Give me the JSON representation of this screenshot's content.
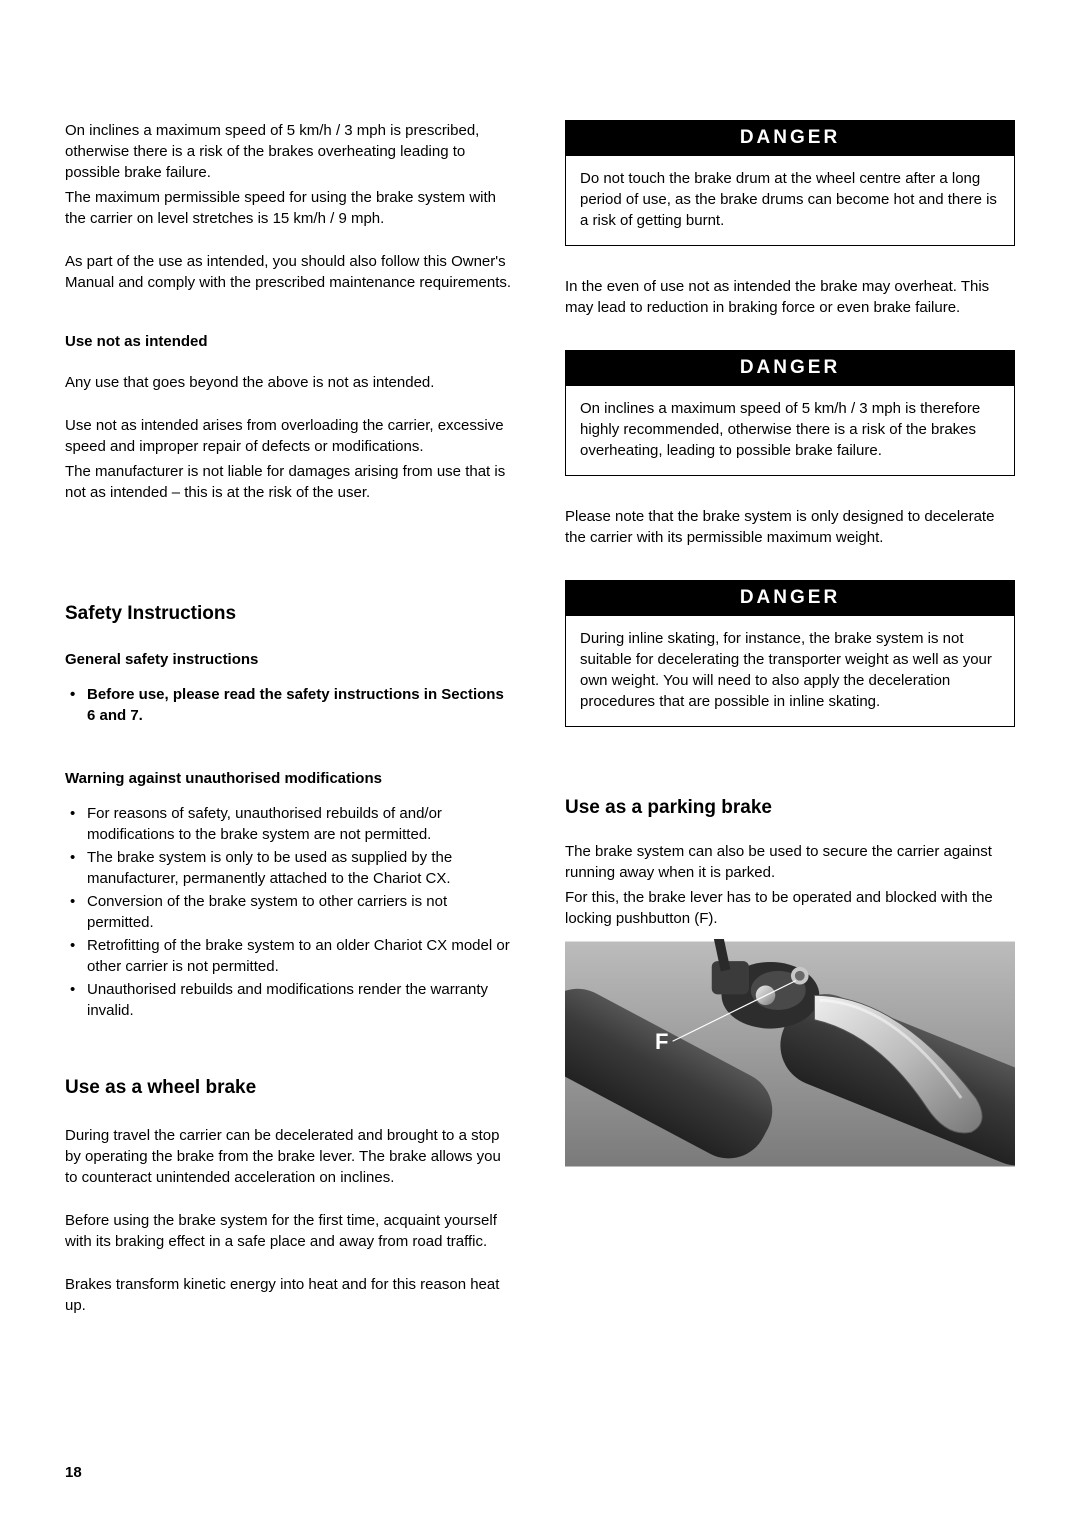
{
  "pageNumber": "18",
  "dangerLabel": "DANGER",
  "left": {
    "intro": {
      "p1": "On inclines a maximum speed of 5 km/h / 3 mph is prescribed, otherwise there is a risk of the brakes overheating leading to possible brake failure.",
      "p2": "The maximum permissible speed for using the brake system with the carrier on level stretches is 15 km/h / 9 mph.",
      "p3": "As part of the use as intended, you should also follow this Owner's Manual and comply with the prescribed maintenance requirements."
    },
    "useNotIntended": {
      "heading": "Use not as intended",
      "p1": "Any use that goes beyond the above is not as intended.",
      "p2": "Use not as intended arises from overloading the carrier, excessive speed and improper repair of defects or modifications.",
      "p3": "The manufacturer is not liable for damages arising from use that is not as intended – this is at the risk of the user."
    },
    "safety": {
      "heading": "Safety Instructions",
      "generalHeading": "General safety instructions",
      "generalBullets": [
        "Before use, please read the safety instructions in Sections 6 and 7."
      ],
      "warningHeading": "Warning against unauthorised modifications",
      "warningBullets": [
        "For reasons of safety, unauthorised rebuilds of and/or modifications to the brake system are not permitted.",
        "The brake system is only to be used as supplied by the manufacturer, permanently attached to the Chariot CX.",
        "Conversion of the brake system to other carriers is not permitted.",
        "Retrofitting of the brake system to an older Chariot CX model or other carrier is not permitted.",
        "Unauthorised rebuilds and modifications render the warranty invalid."
      ]
    },
    "wheelBrake": {
      "heading": "Use as a wheel brake",
      "p1": "During travel the carrier can be decelerated and brought to a stop by operating the brake from the brake lever. The brake allows you to counteract unintended acceleration on inclines.",
      "p2": "Before using the brake system for the first time, acquaint yourself with its braking effect in a safe place and away from road traffic.",
      "p3": "Brakes transform kinetic energy into heat and for this reason heat up."
    }
  },
  "right": {
    "danger1": "Do not touch the brake drum at the wheel centre after a long period of use, as the brake drums can become hot and there is a risk of getting burnt.",
    "inter1": "In the even of use not as intended the brake may overheat. This may lead to reduction in braking force or even brake failure.",
    "danger2": "On inclines a maximum speed of 5 km/h / 3 mph is therefore highly recommended, otherwise there is a risk of the brakes overheating, leading to possible brake failure.",
    "inter2": "Please note that the brake system is only designed to decelerate the carrier with its permissible maximum weight.",
    "danger3": "During inline skating, for instance, the brake system is not suitable for decelerating the transporter weight as well as your own weight. You will need to also apply the deceleration procedures that are possible in inline skating.",
    "parking": {
      "heading": "Use as a parking brake",
      "p1": "The brake system can also be used to secure the carrier against running away when it is parked.",
      "p2": "For this, the brake lever has to be operated and blocked with the locking pushbutton (F)."
    },
    "figure": {
      "label": "F",
      "colors": {
        "bgTop": "#b8b8b8",
        "bgBottom": "#7e7e7e",
        "gripDark": "#3a3a3a",
        "gripMid": "#4a4a4a",
        "metalLight": "#d8d8d8",
        "metalMid": "#9a9a9a",
        "metalDark": "#555555",
        "labelColor": "#ffffff",
        "lineColor": "#ffffff"
      }
    }
  }
}
